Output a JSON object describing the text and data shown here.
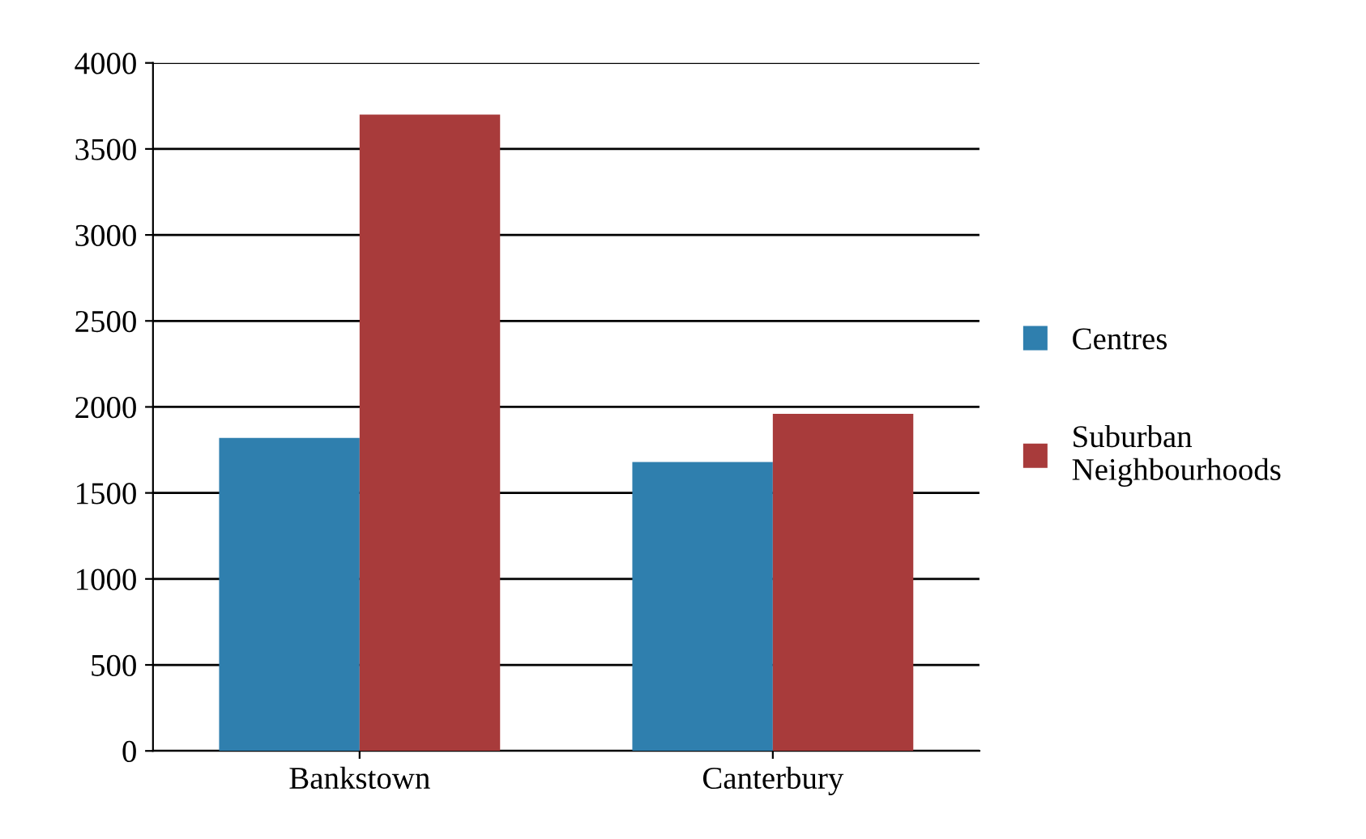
{
  "chart_data": {
    "type": "bar",
    "categories": [
      "Bankstown",
      "Canterbury"
    ],
    "series": [
      {
        "name": "Centres",
        "color": "#2f7fae",
        "values": [
          1820,
          1680
        ]
      },
      {
        "name": "Suburban\nNeighbourhoods",
        "color": "#a83b3b",
        "values": [
          3700,
          1960
        ]
      }
    ],
    "ylim": [
      0,
      4000
    ],
    "yticks": [
      0,
      500,
      1000,
      1500,
      2000,
      2500,
      3000,
      3500,
      4000
    ],
    "grid": "y",
    "legend": "right"
  }
}
